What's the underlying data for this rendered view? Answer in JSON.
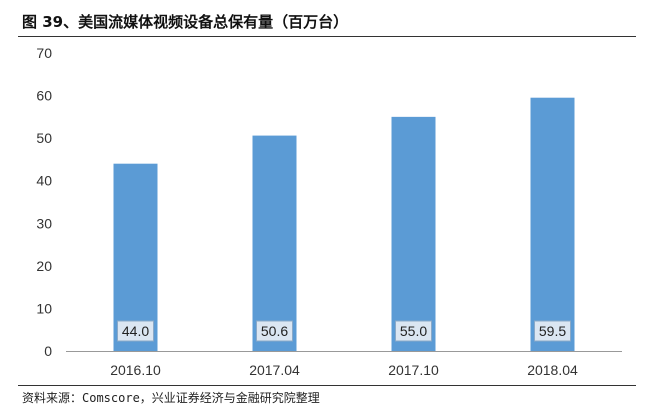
{
  "header": {
    "title": "图 39、美国流媒体视频设备总保有量（百万台）"
  },
  "footer": {
    "source": "资料来源：Comscore，兴业证券经济与金融研究院整理"
  },
  "colors": {
    "bar": "#5b9bd5",
    "label_box_fill": "#dbe6f2",
    "label_box_stroke": "#8aa9c8",
    "axis": "#999999",
    "rule": "#333333"
  },
  "chart_data": {
    "type": "bar",
    "categories": [
      "2016.10",
      "2017.04",
      "2017.10",
      "2018.04"
    ],
    "values": [
      44.0,
      50.6,
      55.0,
      59.5
    ],
    "value_labels": [
      "44.0",
      "50.6",
      "55.0",
      "59.5"
    ],
    "ylim": [
      0,
      70
    ],
    "yticks": [
      0,
      10,
      20,
      30,
      40,
      50,
      60,
      70
    ],
    "grid": false,
    "legend": "none",
    "xlabel": "",
    "ylabel": ""
  }
}
